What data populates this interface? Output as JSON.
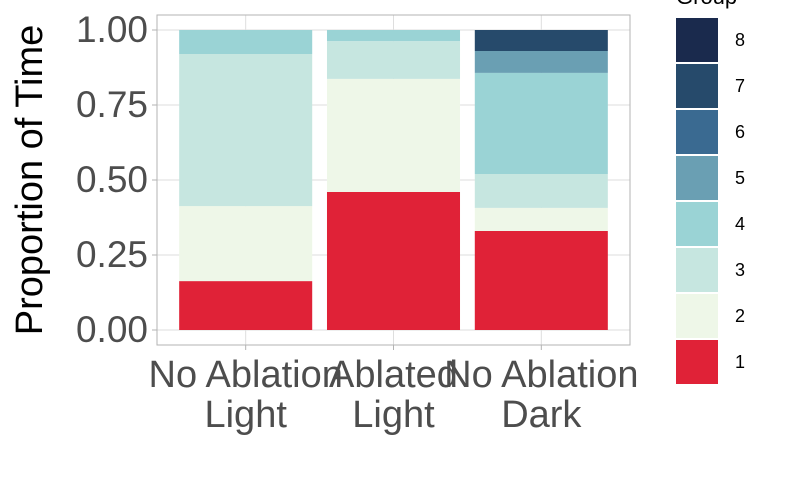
{
  "chart_data": {
    "type": "stacked_bar",
    "y_label": "Proportion of Time",
    "legend_title": "Group",
    "categories": [
      "No Ablation\nLight",
      "Ablated\nLight",
      "No Ablation\nDark"
    ],
    "series": [
      {
        "name": "1",
        "color": "#e02237",
        "values": [
          0.163,
          0.46,
          0.33
        ]
      },
      {
        "name": "2",
        "color": "#eef7e8",
        "values": [
          0.25,
          0.377,
          0.077
        ]
      },
      {
        "name": "3",
        "color": "#c6e6e0",
        "values": [
          0.507,
          0.126,
          0.113
        ]
      },
      {
        "name": "4",
        "color": "#9ad3d5",
        "values": [
          0.08,
          0.037,
          0.337
        ]
      },
      {
        "name": "5",
        "color": "#6a9fb3",
        "values": [
          0,
          0,
          0.073
        ]
      },
      {
        "name": "6",
        "color": "#3a6a91",
        "values": [
          0,
          0,
          0
        ]
      },
      {
        "name": "7",
        "color": "#264a6b",
        "values": [
          0,
          0,
          0.07
        ]
      },
      {
        "name": "8",
        "color": "#1a2a4d",
        "values": [
          0,
          0,
          0
        ]
      }
    ],
    "ylim": [
      -0.05,
      1.05
    ],
    "yticks": [
      {
        "value": 0,
        "label": "0.00"
      },
      {
        "value": 0.25,
        "label": "0.25"
      },
      {
        "value": 0.5,
        "label": "0.50"
      },
      {
        "value": 0.75,
        "label": "0.75"
      },
      {
        "value": 1,
        "label": "1.00"
      }
    ],
    "grid": true
  }
}
